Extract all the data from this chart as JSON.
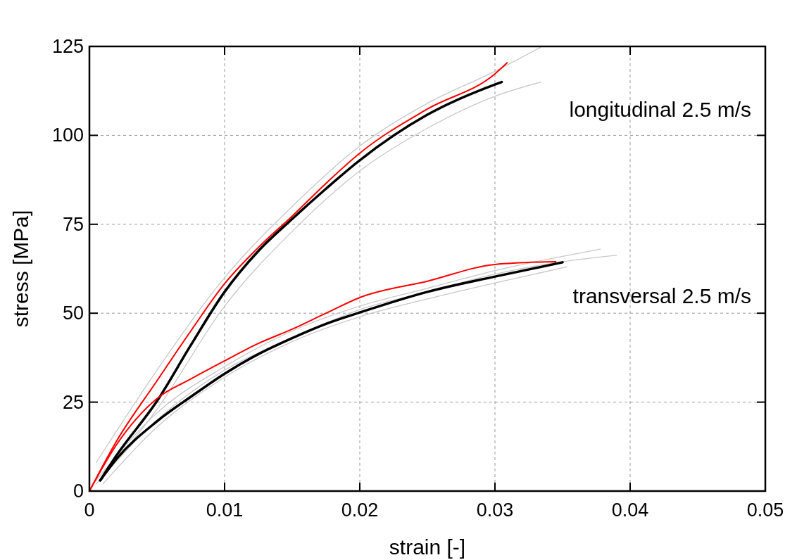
{
  "chart_data": {
    "type": "line",
    "xlabel": "strain [-]",
    "ylabel": "stress [MPa]",
    "xlim": [
      0,
      0.05
    ],
    "ylim": [
      0,
      125
    ],
    "xticks": [
      0,
      0.01,
      0.02,
      0.03,
      0.04,
      0.05
    ],
    "yticks": [
      0,
      25,
      50,
      75,
      100,
      125
    ],
    "grid": true,
    "marker": "none",
    "line_style": "solid",
    "annotations": [
      "longitudinal 2.5 m/s",
      "transversal 2.5 m/s"
    ],
    "series": [
      {
        "color": "#c8c8c8",
        "x": [
          0.0005,
          0.005,
          0.01,
          0.015,
          0.02,
          0.025,
          0.03,
          0.0335
        ],
        "values": [
          8,
          34,
          60,
          80,
          97,
          109,
          118,
          125
        ]
      },
      {
        "color": "#c8c8c8",
        "x": [
          0.001,
          0.005,
          0.01,
          0.015,
          0.02,
          0.025,
          0.03,
          0.0334
        ],
        "values": [
          4,
          23,
          52,
          73,
          90,
          102,
          111,
          115
        ]
      },
      {
        "color": "#c8c8c8",
        "x": [
          0.0005,
          0.005,
          0.01,
          0.015,
          0.02,
          0.025,
          0.03,
          0.035,
          0.0378
        ],
        "values": [
          3,
          22,
          35,
          45,
          52,
          57,
          62,
          66,
          68
        ]
      },
      {
        "color": "#c8c8c8",
        "x": [
          0.0005,
          0.005,
          0.01,
          0.015,
          0.02,
          0.025,
          0.03,
          0.035,
          0.039
        ],
        "values": [
          2,
          20,
          34,
          43,
          51,
          56,
          61,
          64.5,
          66.3
        ]
      },
      {
        "color": "#c8c8c8",
        "x": [
          0.001,
          0.005,
          0.01,
          0.015,
          0.02,
          0.025,
          0.03,
          0.0353
        ],
        "values": [
          2,
          18,
          32,
          42,
          49,
          54,
          58.5,
          63
        ]
      },
      {
        "color": "#ff0000",
        "x": [
          0,
          0.002,
          0.005,
          0.0075,
          0.01,
          0.0125,
          0.015,
          0.0175,
          0.02,
          0.025,
          0.03,
          0.0309
        ],
        "values": [
          0,
          14,
          31,
          45,
          58.3,
          68.5,
          77.3,
          86.5,
          95,
          107.4,
          117.3,
          120.4
        ]
      },
      {
        "color": "#000000",
        "x": [
          0.0008,
          0.002,
          0.005,
          0.0075,
          0.01,
          0.0125,
          0.015,
          0.0175,
          0.02,
          0.025,
          0.03,
          0.0305
        ],
        "values": [
          3,
          10,
          25.3,
          41,
          56,
          67.5,
          76.5,
          85,
          93,
          105.8,
          114.3,
          115
        ]
      },
      {
        "color": "#ff0000",
        "x": [
          0,
          0.002,
          0.005,
          0.0075,
          0.01,
          0.0125,
          0.015,
          0.0175,
          0.02,
          0.025,
          0.03,
          0.0345
        ],
        "values": [
          0,
          13,
          26,
          31.5,
          36.6,
          41.5,
          45.5,
          50,
          54.4,
          59,
          63.7,
          64.5
        ]
      },
      {
        "color": "#000000",
        "x": [
          0.0008,
          0.002,
          0.005,
          0.0075,
          0.01,
          0.0125,
          0.015,
          0.0175,
          0.02,
          0.025,
          0.03,
          0.035
        ],
        "values": [
          3,
          9,
          19.6,
          26.5,
          33,
          38.5,
          43,
          47,
          50.2,
          56,
          60.3,
          64.3
        ]
      }
    ]
  }
}
